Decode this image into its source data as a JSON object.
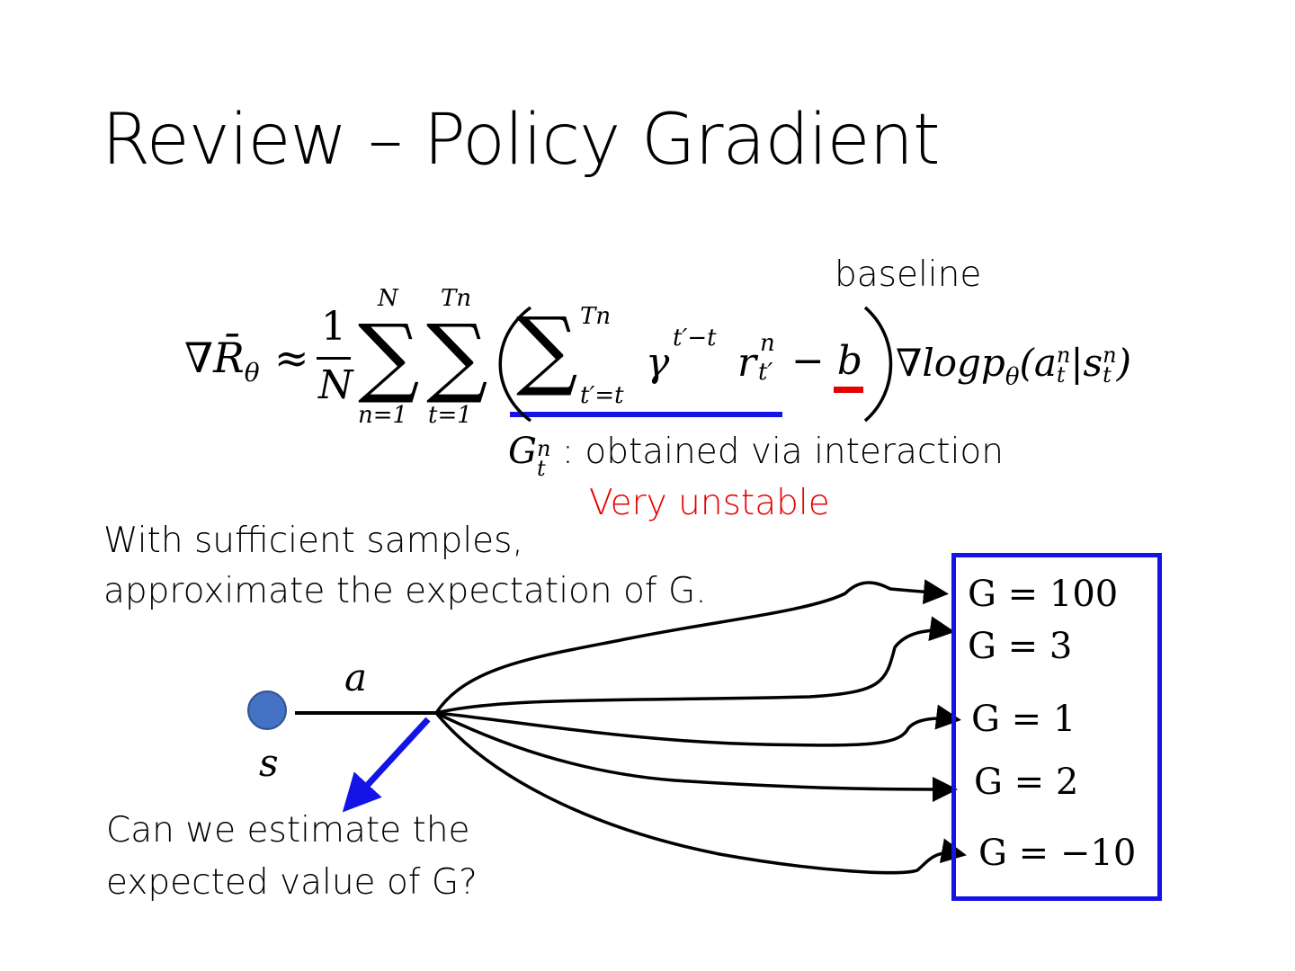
{
  "slide": {
    "title": "Review – Policy Gradient",
    "baseline_label": "baseline",
    "formula": {
      "lhs": "∇R̄",
      "lhs_sub": "θ",
      "approx": "≈",
      "frac_num": "1",
      "frac_den": "N",
      "sum1_upper": "N",
      "sum1_lower": "n=1",
      "sum2_upper": "Tn",
      "sum2_lower": "t=1",
      "inner_sum_upper": "Tn",
      "inner_sum_lower": "t′=t",
      "gamma": "γ",
      "gamma_exp": "t′−t",
      "reward": "r",
      "reward_sup": "n",
      "reward_sub": "t′",
      "minus_b": "− b",
      "grad_log": "∇logp",
      "grad_sub": "θ",
      "args": "(a",
      "args_sup1": "n",
      "args_sub1": "t",
      "bar": "|s",
      "args_sup2": "n",
      "args_sub2": "t",
      "close": ")"
    },
    "g_label": "G",
    "g_sup": "n",
    "g_sub": "t",
    "g_desc": " : obtained via interaction",
    "very_unstable": "Very unstable",
    "sufficient_line1": "With sufficient samples,",
    "sufficient_line2": "approximate the expectation of G.",
    "action_label": "a",
    "state_label": "s",
    "question_line1": "Can we estimate the",
    "question_line2": "expected value of G?",
    "outcomes": [
      "G = 100",
      "G = 3",
      "G = 1",
      "G = 2",
      "G = −10"
    ],
    "colors": {
      "blue_underline": "#1414e6",
      "red_mark": "#e60000",
      "red_text": "#e60000",
      "state_node": "#4472c4",
      "box": "#1414e6"
    }
  }
}
